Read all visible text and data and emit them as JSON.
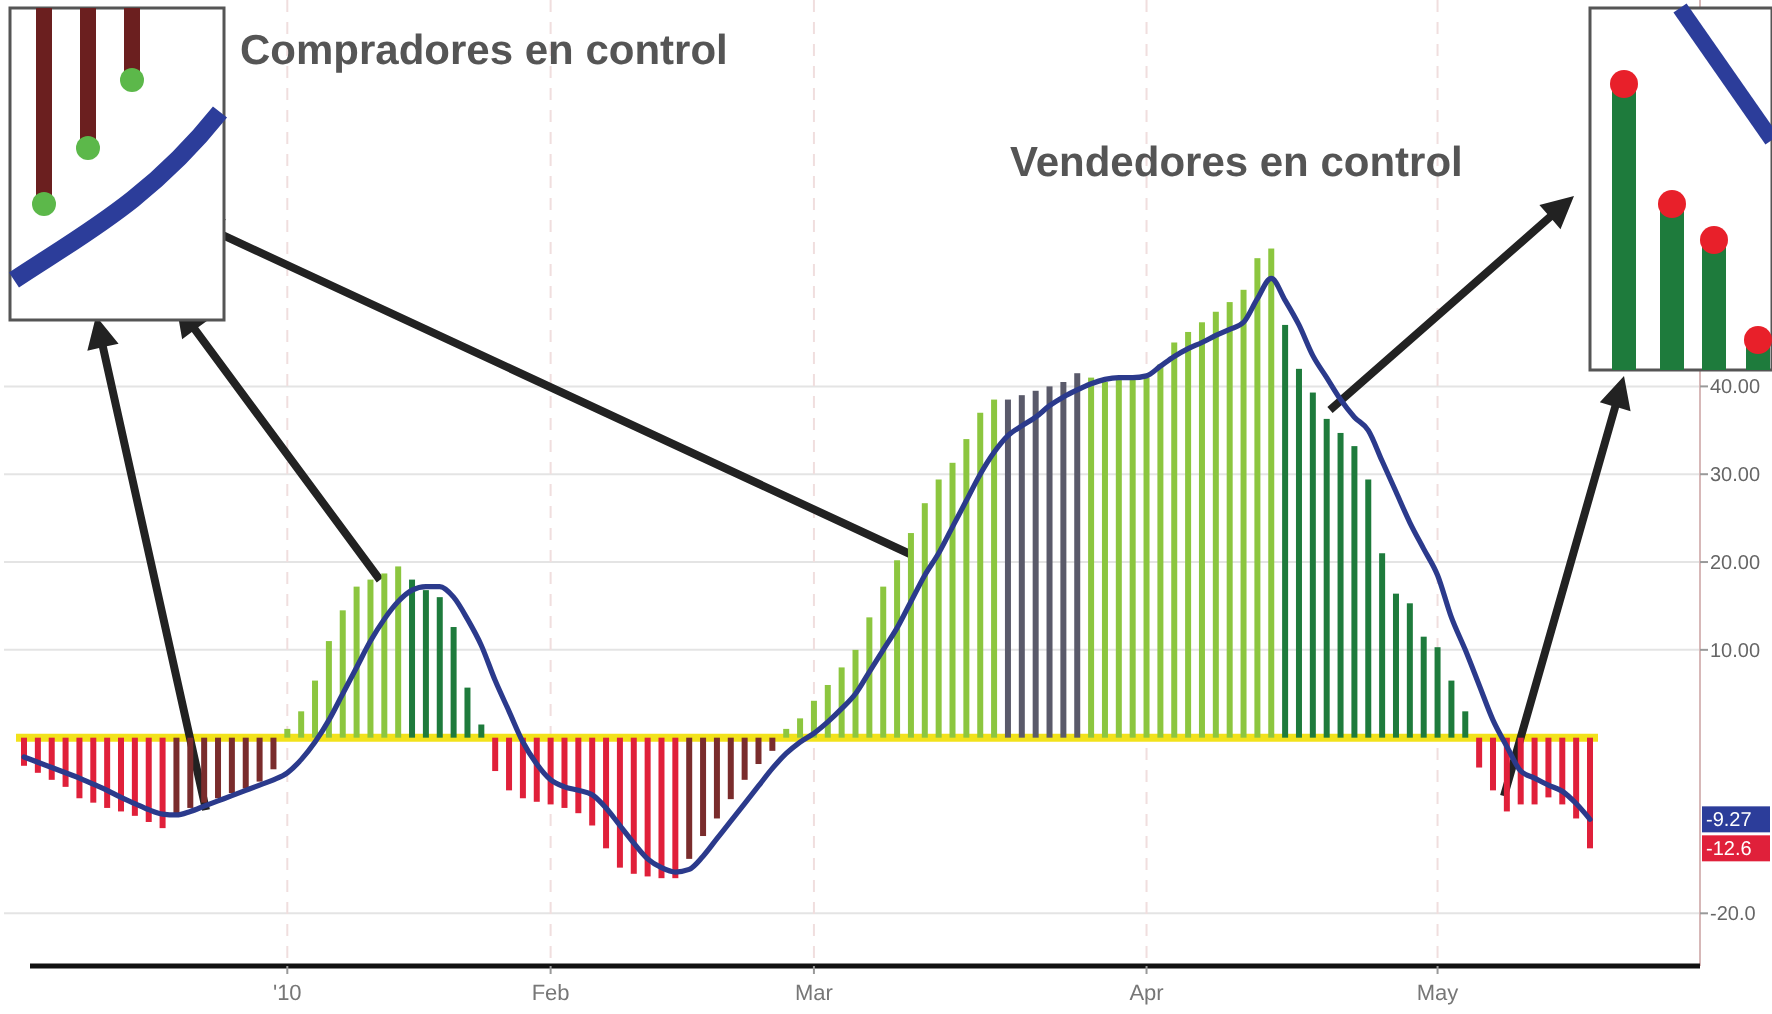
{
  "chart_data": {
    "type": "bar",
    "categories": [
      null,
      null,
      null,
      null,
      null,
      null,
      null,
      null,
      null,
      null,
      null,
      null,
      null,
      null,
      null,
      null,
      null,
      null,
      null,
      "'10",
      null,
      null,
      null,
      null,
      null,
      null,
      null,
      null,
      null,
      null,
      null,
      null,
      null,
      null,
      null,
      null,
      null,
      null,
      "Feb",
      null,
      null,
      null,
      null,
      null,
      null,
      null,
      null,
      null,
      null,
      null,
      null,
      null,
      null,
      null,
      null,
      null,
      null,
      "Mar",
      null,
      null,
      null,
      null,
      null,
      null,
      null,
      null,
      null,
      null,
      null,
      null,
      null,
      null,
      null,
      null,
      null,
      null,
      null,
      null,
      null,
      null,
      null,
      "Apr",
      null,
      null,
      null,
      null,
      null,
      null,
      null,
      null,
      null,
      null,
      null,
      null,
      null,
      null,
      null,
      null,
      null,
      null,
      null,
      null,
      "May",
      null,
      null,
      null,
      null,
      null,
      null,
      null,
      null,
      null,
      null,
      null
    ],
    "series": [
      {
        "values": [
          -3.2,
          -4,
          -4.8,
          -5.6,
          -6.9,
          -7.4,
          -8,
          -8.4,
          -8.9,
          -9.6,
          -10.3,
          -8.8,
          -8,
          -7.4,
          -6.9,
          -6.3,
          -5.8,
          -5,
          -3.6,
          1,
          3,
          6.5,
          11,
          14.5,
          17.2,
          18,
          18.7,
          19.5,
          18,
          16.8,
          16,
          12.6,
          5.7,
          1.5,
          -3.8,
          -6,
          -6.9,
          -7.3,
          -7.6,
          -8,
          -8.6,
          -10,
          -12.6,
          -14.8,
          -15.5,
          -15.8,
          -16,
          -16,
          -13.8,
          -11.2,
          -9.2,
          -7,
          -4.8,
          -3,
          -1.5,
          1,
          2.2,
          4.2,
          6,
          8,
          10,
          13.7,
          17.2,
          20.2,
          23.3,
          26.7,
          29.4,
          31.3,
          34,
          37,
          38.5,
          38.5,
          39,
          39.5,
          40,
          40.5,
          41.5,
          41,
          40.5,
          40.8,
          40.8,
          41,
          42.5,
          45,
          46.2,
          47.3,
          48.5,
          49.6,
          51,
          54.6,
          55.7,
          47,
          42,
          39.3,
          36.3,
          34.7,
          33.2,
          29.4,
          21,
          16.4,
          15.3,
          11.5,
          10.3,
          6.5,
          3,
          -3.4,
          -6,
          -8.4,
          -7.6,
          -7.6,
          -6.8,
          -7.6,
          -9.2,
          -12.6
        ],
        "colors": [
          "#e0203a",
          "#e0203a",
          "#e0203a",
          "#e0203a",
          "#e0203a",
          "#e0203a",
          "#e0203a",
          "#e0203a",
          "#e0203a",
          "#e0203a",
          "#e0203a",
          "#7a2c2c",
          "#7a2c2c",
          "#7a2c2c",
          "#7a2c2c",
          "#7a2c2c",
          "#7a2c2c",
          "#7a2c2c",
          "#7a2c2c",
          "#8cc63f",
          "#8cc63f",
          "#8cc63f",
          "#8cc63f",
          "#8cc63f",
          "#8cc63f",
          "#8cc63f",
          "#8cc63f",
          "#8cc63f",
          "#1e7b3c",
          "#1e7b3c",
          "#1e7b3c",
          "#1e7b3c",
          "#1e7b3c",
          "#1e7b3c",
          "#e0203a",
          "#e0203a",
          "#e0203a",
          "#e0203a",
          "#e0203a",
          "#e0203a",
          "#e0203a",
          "#e0203a",
          "#e0203a",
          "#e0203a",
          "#e0203a",
          "#e0203a",
          "#e0203a",
          "#e0203a",
          "#7a2c2c",
          "#7a2c2c",
          "#7a2c2c",
          "#7a2c2c",
          "#7a2c2c",
          "#7a2c2c",
          "#7a2c2c",
          "#8cc63f",
          "#8cc63f",
          "#8cc63f",
          "#8cc63f",
          "#8cc63f",
          "#8cc63f",
          "#8cc63f",
          "#8cc63f",
          "#8cc63f",
          "#8cc63f",
          "#8cc63f",
          "#8cc63f",
          "#8cc63f",
          "#8cc63f",
          "#8cc63f",
          "#8cc63f",
          "#5a5a6a",
          "#5a5a6a",
          "#5a5a6a",
          "#5a5a6a",
          "#5a5a6a",
          "#5a5a6a",
          "#8cc63f",
          "#8cc63f",
          "#8cc63f",
          "#8cc63f",
          "#8cc63f",
          "#8cc63f",
          "#8cc63f",
          "#8cc63f",
          "#8cc63f",
          "#8cc63f",
          "#8cc63f",
          "#8cc63f",
          "#8cc63f",
          "#8cc63f",
          "#1e7b3c",
          "#1e7b3c",
          "#1e7b3c",
          "#1e7b3c",
          "#1e7b3c",
          "#1e7b3c",
          "#1e7b3c",
          "#1e7b3c",
          "#1e7b3c",
          "#1e7b3c",
          "#1e7b3c",
          "#1e7b3c",
          "#1e7b3c",
          "#1e7b3c",
          "#e0203a",
          "#e0203a",
          "#e0203a",
          "#e0203a",
          "#e0203a",
          "#e0203a",
          "#e0203a",
          "#e0203a",
          "#e0203a"
        ]
      },
      {
        "type": "line",
        "color": "#2b3a8c",
        "values": [
          -2.2,
          -2.8,
          -3.4,
          -4,
          -4.6,
          -5.3,
          -6,
          -6.8,
          -7.5,
          -8.2,
          -8.7,
          -8.8,
          -8.4,
          -7.8,
          -7.2,
          -6.6,
          -6,
          -5.4,
          -4.8,
          -4,
          -2.5,
          -0.5,
          2,
          5,
          8,
          11,
          13.5,
          15.5,
          16.8,
          17.2,
          17.2,
          16,
          13.5,
          10.5,
          6.5,
          3,
          -0.5,
          -3,
          -4.8,
          -5.6,
          -6,
          -6.5,
          -8,
          -10,
          -12,
          -13.8,
          -14.8,
          -15.3,
          -15,
          -13.5,
          -11.5,
          -9.5,
          -7.5,
          -5.5,
          -3.5,
          -1.8,
          -0.5,
          0.5,
          1.8,
          3.3,
          5,
          7.5,
          10,
          12.5,
          15.5,
          18.5,
          21,
          24,
          27,
          30,
          32.5,
          34.4,
          35.5,
          36.5,
          37.8,
          38.8,
          39.6,
          40.3,
          40.8,
          41,
          41,
          41.2,
          42.3,
          43.4,
          44.3,
          45,
          45.8,
          46.5,
          47.3,
          50,
          52.3,
          49.8,
          47,
          43.5,
          41,
          38.5,
          36.5,
          35,
          31.5,
          28,
          24.5,
          21.5,
          18.5,
          13.7,
          10,
          6,
          2,
          -1,
          -3.8,
          -4.6,
          -5.4,
          -6.1,
          -7.5,
          -9.3
        ]
      }
    ],
    "ylim": [
      -26,
      84
    ],
    "yticks": [
      {
        "value": 40,
        "label": "40.00"
      },
      {
        "value": 30,
        "label": "30.00"
      },
      {
        "value": 20,
        "label": "20.00"
      },
      {
        "value": 10,
        "label": "10.00"
      },
      {
        "value": -20,
        "label": "-20.0"
      }
    ],
    "grid": true,
    "ref_lines": [
      {
        "axis": "y",
        "value": 0,
        "color": "#f2e21b"
      }
    ],
    "annotations": [
      "Compradores en control",
      "Vendedores en control",
      "-9.27",
      "-12.6"
    ]
  }
}
